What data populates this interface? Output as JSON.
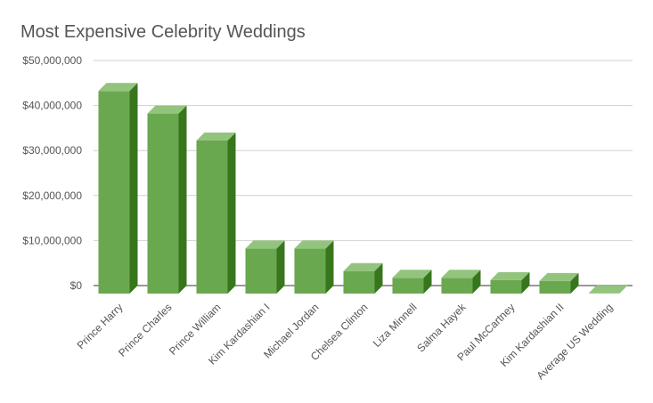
{
  "chart_data": {
    "type": "bar",
    "title": "Most Expensive Celebrity Weddings",
    "xlabel": "",
    "ylabel": "",
    "ylim": [
      0,
      50000000
    ],
    "yticks": [
      0,
      10000000,
      20000000,
      30000000,
      40000000,
      50000000
    ],
    "ytick_labels": [
      "$0",
      "$10,000,000",
      "$20,000,000",
      "$30,000,000",
      "$40,000,000",
      "$50,000,000"
    ],
    "grid": true,
    "legend": "none",
    "bar_3d": true,
    "colors": {
      "front": "#6aa84f",
      "top": "#93c47d",
      "side": "#38761d"
    },
    "categories": [
      "Prince Harry",
      "Prince Charles",
      "Prince William",
      "Kim Kardashian I",
      "Michael Jordan",
      "Chelsea Clinton",
      "Liza Minnell",
      "Salma Hayek",
      "Paul McCartney",
      "Kim Kardashian II",
      "Average US Wedding"
    ],
    "values": [
      45000000,
      40000000,
      34000000,
      10000000,
      10000000,
      5000000,
      3500000,
      3500000,
      3000000,
      2800000,
      33000
    ]
  }
}
